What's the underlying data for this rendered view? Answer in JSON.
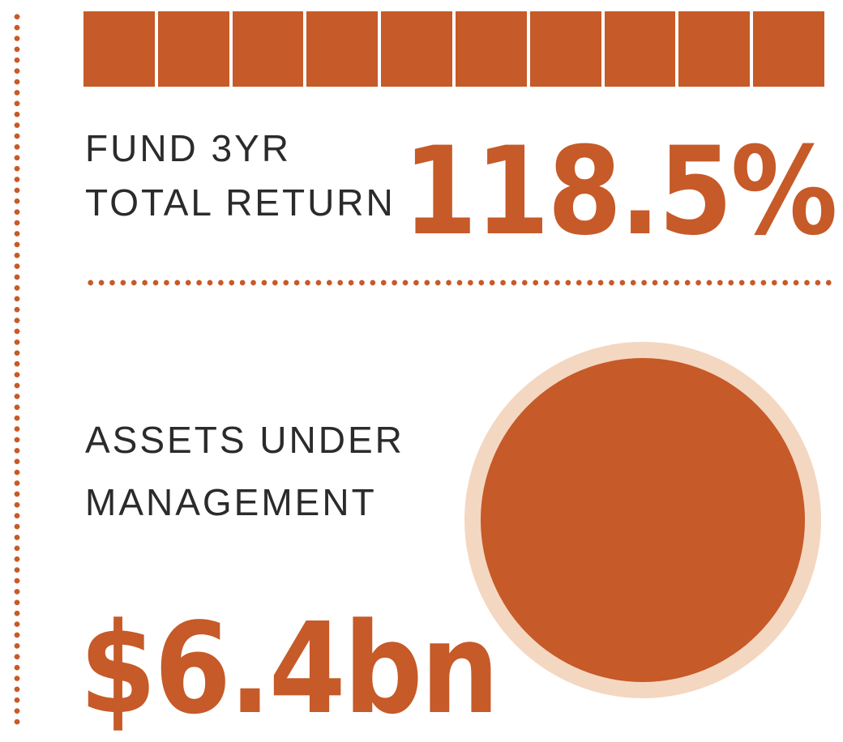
{
  "colors": {
    "accent": "#C65A28",
    "accent_light": "#F4D7C1",
    "text_dark": "#2B2B2B",
    "background": "#FFFFFF"
  },
  "stats": {
    "return": {
      "label_line1": "FUND 3YR",
      "label_line2": "TOTAL RETURN",
      "value": "118.5%",
      "segments": 10
    },
    "aum": {
      "label_line1": "ASSETS UNDER",
      "label_line2": "MANAGEMENT",
      "value": "$6.4bn"
    }
  },
  "chart_data": [
    {
      "type": "bar",
      "title": "FUND 3YR TOTAL RETURN",
      "value": 118.5,
      "unit": "percent",
      "display_value": "118.5%",
      "categories": [
        "segment"
      ],
      "values": [
        118.5
      ],
      "segments_shown": 10,
      "legend_position": "none",
      "note": "horizontal strip of 10 fully-filled orange square segments representing the return"
    },
    {
      "type": "pie",
      "title": "ASSETS UNDER MANAGEMENT",
      "value": 6.4,
      "unit": "USD billions",
      "display_value": "$6.4bn",
      "slices": [
        {
          "label": "assets under management",
          "value": 100
        }
      ],
      "legend_position": "none",
      "note": "single fully-filled orange circle with pale peach outer ring"
    }
  ]
}
